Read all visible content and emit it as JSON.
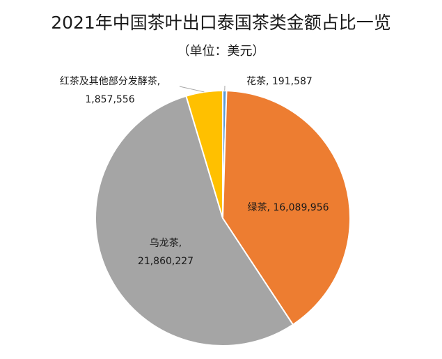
{
  "chart_data": {
    "type": "pie",
    "title": "2021年中国茶叶出口泰国茶类金额占比一览",
    "subtitle": "（单位：美元）",
    "categories": [
      "花茶",
      "绿茶",
      "乌龙茶",
      "红茶及其他部分发酵茶"
    ],
    "values": [
      191587,
      16089956,
      21860227,
      1857556
    ],
    "data_labels": [
      {
        "name": "花茶",
        "value": "191,587"
      },
      {
        "name": "绿茶",
        "value": "16,089,956"
      },
      {
        "name": "乌龙茶",
        "value": "21,860,227"
      },
      {
        "name": "红茶及其他部分发酵茶",
        "value": "1,857,556"
      }
    ],
    "colors": [
      "#5B9BD5",
      "#ED7D31",
      "#A5A5A5",
      "#FFC000"
    ],
    "legend": "none",
    "start_angle_deg": 0,
    "direction": "clockwise"
  }
}
